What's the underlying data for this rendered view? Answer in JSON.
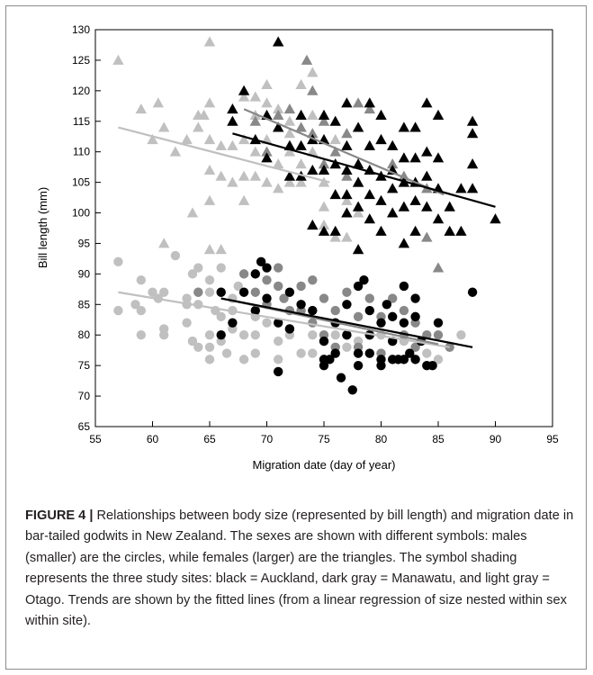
{
  "caption": {
    "label": "FIGURE 4 |",
    "text": " Relationships between body size (represented by bill length) and migration date in bar-tailed godwits in New Zealand. The sexes are shown with different symbols: males (smaller) are the circles, while females (larger) are the triangles. The symbol shading represents the three study sites: black = Auckland, dark gray = Manawatu, and light gray = Otago. Trends are shown by the fitted lines (from a linear regression of size nested within sex within site)."
  },
  "colors": {
    "auckland": "#000000",
    "manawatu": "#888888",
    "otago": "#c0c0c0"
  },
  "chart_data": {
    "type": "scatter",
    "xlabel": "Migration date (day of year)",
    "ylabel": "Bill length (mm)",
    "xlim": [
      55,
      95
    ],
    "ylim": [
      65,
      130
    ],
    "xticks": [
      55,
      60,
      65,
      70,
      75,
      80,
      85,
      90,
      95
    ],
    "yticks": [
      65,
      70,
      75,
      80,
      85,
      90,
      95,
      100,
      105,
      110,
      115,
      120,
      125,
      130
    ],
    "grid": false,
    "series": [
      {
        "shape": "circle",
        "color": "#c0c0c0",
        "points": [
          [
            57,
            92
          ],
          [
            57,
            84
          ],
          [
            58.5,
            85
          ],
          [
            59,
            89
          ],
          [
            59,
            84
          ],
          [
            59,
            80
          ],
          [
            60,
            87
          ],
          [
            60.5,
            86
          ],
          [
            61,
            87
          ],
          [
            61,
            80
          ],
          [
            61,
            81
          ],
          [
            62,
            93
          ],
          [
            63,
            86
          ],
          [
            63,
            85
          ],
          [
            63,
            82
          ],
          [
            63.5,
            90
          ],
          [
            63.5,
            79
          ],
          [
            64,
            91
          ],
          [
            64,
            87
          ],
          [
            64,
            85
          ],
          [
            64,
            78
          ],
          [
            65,
            89
          ],
          [
            65,
            87
          ],
          [
            65,
            80
          ],
          [
            65,
            78
          ],
          [
            65,
            76
          ],
          [
            65.5,
            84
          ],
          [
            66,
            91
          ],
          [
            66,
            83
          ],
          [
            66,
            79
          ],
          [
            66.5,
            77
          ],
          [
            67,
            86
          ],
          [
            67,
            84
          ],
          [
            67,
            81
          ],
          [
            67.5,
            88
          ],
          [
            68,
            80
          ],
          [
            68,
            76
          ],
          [
            69,
            83
          ],
          [
            69,
            80
          ],
          [
            69,
            77
          ],
          [
            70,
            82
          ],
          [
            71,
            79
          ],
          [
            71,
            76
          ],
          [
            72,
            80
          ],
          [
            73,
            77
          ],
          [
            74,
            80
          ],
          [
            74,
            77
          ],
          [
            75,
            79
          ],
          [
            75,
            76
          ],
          [
            76,
            80
          ],
          [
            76,
            77
          ],
          [
            77,
            78
          ],
          [
            78,
            79
          ],
          [
            80,
            80
          ],
          [
            82,
            79
          ],
          [
            84,
            77
          ],
          [
            85,
            76
          ],
          [
            87,
            80
          ]
        ]
      },
      {
        "shape": "circle",
        "color": "#888888",
        "points": [
          [
            64,
            87
          ],
          [
            66,
            87
          ],
          [
            68,
            90
          ],
          [
            69,
            87
          ],
          [
            70,
            89
          ],
          [
            70,
            85
          ],
          [
            71,
            91
          ],
          [
            71,
            88
          ],
          [
            71.5,
            86
          ],
          [
            72,
            84
          ],
          [
            72,
            81
          ],
          [
            73,
            88
          ],
          [
            73,
            84
          ],
          [
            74,
            89
          ],
          [
            74,
            82
          ],
          [
            75,
            86
          ],
          [
            75,
            80
          ],
          [
            76,
            84
          ],
          [
            76,
            78
          ],
          [
            77,
            87
          ],
          [
            77,
            80
          ],
          [
            78,
            83
          ],
          [
            78,
            78
          ],
          [
            79,
            86
          ],
          [
            79,
            80
          ],
          [
            80,
            83
          ],
          [
            80,
            77
          ],
          [
            81,
            86
          ],
          [
            81,
            79
          ],
          [
            82,
            84
          ],
          [
            82,
            80
          ],
          [
            83,
            82
          ],
          [
            83,
            78
          ],
          [
            84,
            80
          ],
          [
            85,
            80
          ],
          [
            86,
            78
          ]
        ]
      },
      {
        "shape": "circle",
        "color": "#000000",
        "points": [
          [
            66,
            87
          ],
          [
            66,
            80
          ],
          [
            67,
            82
          ],
          [
            68,
            87
          ],
          [
            69,
            84
          ],
          [
            69,
            90
          ],
          [
            69.5,
            92
          ],
          [
            70,
            86
          ],
          [
            70,
            91
          ],
          [
            71,
            82
          ],
          [
            71,
            74
          ],
          [
            72,
            81
          ],
          [
            72,
            87
          ],
          [
            73,
            85
          ],
          [
            74,
            84
          ],
          [
            75,
            75
          ],
          [
            75,
            76
          ],
          [
            75,
            79
          ],
          [
            75.5,
            76
          ],
          [
            76,
            77
          ],
          [
            76,
            82
          ],
          [
            76.5,
            73
          ],
          [
            77,
            85
          ],
          [
            77,
            80
          ],
          [
            77.5,
            71
          ],
          [
            78,
            75
          ],
          [
            78,
            88
          ],
          [
            78,
            77
          ],
          [
            78.5,
            89
          ],
          [
            79,
            84
          ],
          [
            79,
            77
          ],
          [
            79,
            80
          ],
          [
            80,
            82
          ],
          [
            80,
            76
          ],
          [
            80,
            75
          ],
          [
            80.5,
            85
          ],
          [
            81,
            76
          ],
          [
            81,
            79
          ],
          [
            81,
            83
          ],
          [
            81.5,
            76
          ],
          [
            82,
            82
          ],
          [
            82,
            76
          ],
          [
            82,
            88
          ],
          [
            82.5,
            77
          ],
          [
            83,
            86
          ],
          [
            83,
            83
          ],
          [
            83,
            76
          ],
          [
            83.5,
            79
          ],
          [
            84,
            75
          ],
          [
            84.5,
            75
          ],
          [
            85,
            82
          ],
          [
            88,
            87
          ]
        ]
      },
      {
        "shape": "triangle",
        "color": "#c0c0c0",
        "points": [
          [
            57,
            125
          ],
          [
            59,
            117
          ],
          [
            60,
            112
          ],
          [
            60.5,
            118
          ],
          [
            61,
            95
          ],
          [
            61,
            114
          ],
          [
            62,
            110
          ],
          [
            63,
            112
          ],
          [
            63.5,
            100
          ],
          [
            64,
            116
          ],
          [
            64,
            114
          ],
          [
            64.5,
            116
          ],
          [
            65,
            128
          ],
          [
            65,
            118
          ],
          [
            65,
            112
          ],
          [
            65,
            107
          ],
          [
            65,
            102
          ],
          [
            65,
            94
          ],
          [
            66,
            111
          ],
          [
            66,
            106
          ],
          [
            66,
            94
          ],
          [
            67,
            117
          ],
          [
            67,
            111
          ],
          [
            67,
            105
          ],
          [
            68,
            119
          ],
          [
            68,
            112
          ],
          [
            68,
            106
          ],
          [
            68,
            102
          ],
          [
            69,
            119
          ],
          [
            69,
            116
          ],
          [
            69,
            110
          ],
          [
            69,
            106
          ],
          [
            70,
            121
          ],
          [
            70,
            118
          ],
          [
            70,
            112
          ],
          [
            70,
            105
          ],
          [
            71,
            117
          ],
          [
            71,
            108
          ],
          [
            71,
            104
          ],
          [
            72,
            115
          ],
          [
            72,
            113
          ],
          [
            72,
            110
          ],
          [
            72,
            105
          ],
          [
            73,
            121
          ],
          [
            73,
            108
          ],
          [
            73,
            105
          ],
          [
            74,
            123
          ],
          [
            74,
            116
          ],
          [
            74,
            110
          ],
          [
            75,
            105
          ],
          [
            75,
            101
          ],
          [
            75,
            98
          ],
          [
            76,
            96
          ],
          [
            76,
            112
          ],
          [
            77,
            102
          ],
          [
            77,
            96
          ],
          [
            78,
            100
          ]
        ]
      },
      {
        "shape": "triangle",
        "color": "#888888",
        "points": [
          [
            69,
            115
          ],
          [
            70,
            110
          ],
          [
            71,
            116
          ],
          [
            72,
            117
          ],
          [
            72,
            111
          ],
          [
            73,
            114
          ],
          [
            73.5,
            125
          ],
          [
            74,
            120
          ],
          [
            74,
            113
          ],
          [
            75,
            115
          ],
          [
            75,
            108
          ],
          [
            76,
            110
          ],
          [
            77,
            113
          ],
          [
            77,
            106
          ],
          [
            78,
            118
          ],
          [
            78,
            105
          ],
          [
            79,
            117
          ],
          [
            79,
            107
          ],
          [
            80,
            112
          ],
          [
            81,
            108
          ],
          [
            82,
            106
          ],
          [
            83,
            114
          ],
          [
            84,
            104
          ],
          [
            84,
            96
          ],
          [
            85,
            91
          ],
          [
            86,
            97
          ]
        ]
      },
      {
        "shape": "triangle",
        "color": "#000000",
        "points": [
          [
            67,
            117
          ],
          [
            67,
            115
          ],
          [
            68,
            120
          ],
          [
            69,
            112
          ],
          [
            70,
            116
          ],
          [
            70,
            109
          ],
          [
            71,
            128
          ],
          [
            71,
            114
          ],
          [
            72,
            111
          ],
          [
            72,
            106
          ],
          [
            73,
            116
          ],
          [
            73,
            111
          ],
          [
            73,
            106
          ],
          [
            74,
            112
          ],
          [
            74,
            98
          ],
          [
            74,
            107
          ],
          [
            75,
            116
          ],
          [
            75,
            112
          ],
          [
            75,
            107
          ],
          [
            75,
            97
          ],
          [
            76,
            115
          ],
          [
            76,
            108
          ],
          [
            76,
            103
          ],
          [
            76,
            97
          ],
          [
            77,
            118
          ],
          [
            77,
            111
          ],
          [
            77,
            107
          ],
          [
            77,
            103
          ],
          [
            77,
            100
          ],
          [
            78,
            114
          ],
          [
            78,
            108
          ],
          [
            78,
            105
          ],
          [
            78,
            101
          ],
          [
            78,
            94
          ],
          [
            79,
            118
          ],
          [
            79,
            111
          ],
          [
            79,
            107
          ],
          [
            79,
            103
          ],
          [
            79,
            99
          ],
          [
            80,
            116
          ],
          [
            80,
            112
          ],
          [
            80,
            106
          ],
          [
            80,
            102
          ],
          [
            80,
            97
          ],
          [
            81,
            111
          ],
          [
            81,
            107
          ],
          [
            81,
            104
          ],
          [
            81,
            100
          ],
          [
            82,
            114
          ],
          [
            82,
            109
          ],
          [
            82,
            105
          ],
          [
            82,
            101
          ],
          [
            82,
            95
          ],
          [
            83,
            114
          ],
          [
            83,
            109
          ],
          [
            83,
            105
          ],
          [
            83,
            102
          ],
          [
            83,
            97
          ],
          [
            84,
            118
          ],
          [
            84,
            110
          ],
          [
            84,
            106
          ],
          [
            84,
            101
          ],
          [
            85,
            116
          ],
          [
            85,
            109
          ],
          [
            85,
            104
          ],
          [
            85,
            99
          ],
          [
            86,
            101
          ],
          [
            86,
            97
          ],
          [
            87,
            104
          ],
          [
            87,
            97
          ],
          [
            88,
            115
          ],
          [
            88,
            113
          ],
          [
            88,
            108
          ],
          [
            88,
            104
          ],
          [
            90,
            99
          ]
        ]
      }
    ],
    "fits": [
      {
        "color": "#c0c0c0",
        "x": [
          57,
          86
        ],
        "y": [
          87,
          78
        ]
      },
      {
        "color": "#888888",
        "x": [
          66,
          85
        ],
        "y": [
          86,
          78.5
        ]
      },
      {
        "color": "#000000",
        "x": [
          66,
          88
        ],
        "y": [
          86,
          78
        ]
      },
      {
        "color": "#c0c0c0",
        "x": [
          57,
          75.5
        ],
        "y": [
          114,
          105
        ]
      },
      {
        "color": "#888888",
        "x": [
          68,
          85.5
        ],
        "y": [
          117,
          103
        ]
      },
      {
        "color": "#000000",
        "x": [
          67,
          90
        ],
        "y": [
          113,
          101
        ]
      }
    ]
  }
}
